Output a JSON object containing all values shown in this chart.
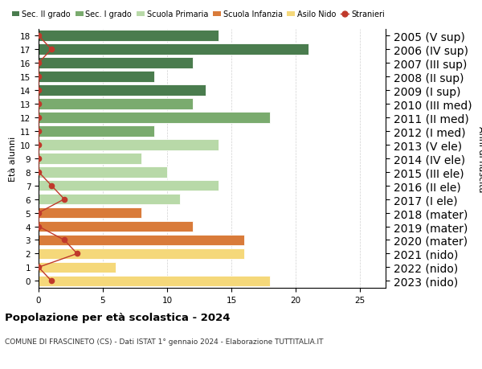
{
  "ages": [
    18,
    17,
    16,
    15,
    14,
    13,
    12,
    11,
    10,
    9,
    8,
    7,
    6,
    5,
    4,
    3,
    2,
    1,
    0
  ],
  "years": [
    "2005 (V sup)",
    "2006 (IV sup)",
    "2007 (III sup)",
    "2008 (II sup)",
    "2009 (I sup)",
    "2010 (III med)",
    "2011 (II med)",
    "2012 (I med)",
    "2013 (V ele)",
    "2014 (IV ele)",
    "2015 (III ele)",
    "2016 (II ele)",
    "2017 (I ele)",
    "2018 (mater)",
    "2019 (mater)",
    "2020 (mater)",
    "2021 (nido)",
    "2022 (nido)",
    "2023 (nido)"
  ],
  "bar_values": [
    14,
    21,
    12,
    9,
    13,
    12,
    18,
    9,
    14,
    8,
    10,
    14,
    11,
    8,
    12,
    16,
    16,
    6,
    18
  ],
  "stranieri_values": [
    0,
    1,
    0,
    0,
    0,
    0,
    0,
    0,
    0,
    0,
    0,
    1,
    2,
    0,
    0,
    2,
    3,
    0,
    1
  ],
  "categories": {
    "sec_II": [
      18,
      17,
      16,
      15,
      14
    ],
    "sec_I": [
      13,
      12,
      11
    ],
    "primaria": [
      10,
      9,
      8,
      7,
      6
    ],
    "infanzia": [
      5,
      4,
      3
    ],
    "nido": [
      2,
      1,
      0
    ]
  },
  "colors": {
    "sec_II": "#4a7c4e",
    "sec_I": "#7aab6e",
    "primaria": "#b8d9a8",
    "infanzia": "#d97b3a",
    "nido": "#f5d87a",
    "stranieri": "#c0392b"
  },
  "legend_labels": [
    "Sec. II grado",
    "Sec. I grado",
    "Scuola Primaria",
    "Scuola Infanzia",
    "Asilo Nido",
    "Stranieri"
  ],
  "title": "Popolazione per età scolastica - 2024",
  "subtitle": "COMUNE DI FRASCINETO (CS) - Dati ISTAT 1° gennaio 2024 - Elaborazione TUTTITALIA.IT",
  "ylabel": "Età alunni",
  "ylabel2": "Anni di nascita",
  "xlim": [
    0,
    27
  ],
  "xticks": [
    0,
    5,
    10,
    15,
    20,
    25
  ]
}
